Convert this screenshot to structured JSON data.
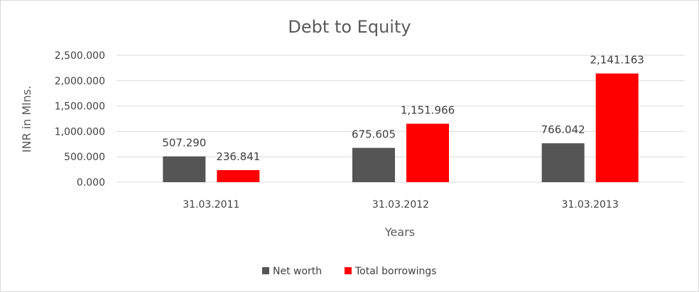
{
  "chart_data": {
    "type": "bar",
    "title": "Debt to Equity",
    "xlabel": "Years",
    "ylabel": "INR in Mlns.",
    "categories": [
      "31.03.2011",
      "31.03.2012",
      "31.03.2013"
    ],
    "series": [
      {
        "name": "Net worth",
        "color": "#555555",
        "values": [
          507.29,
          675.605,
          766.042
        ],
        "labels": [
          "507.290",
          "675.605",
          "766.042"
        ]
      },
      {
        "name": "Total borrowings",
        "color": "#ff0000",
        "values": [
          236.841,
          1151.966,
          2141.163
        ],
        "labels": [
          "236.841",
          "1,151.966",
          "2,141.163"
        ]
      }
    ],
    "ylim": [
      0,
      2500
    ],
    "yticks": [
      0,
      500,
      1000,
      1500,
      2000,
      2500
    ],
    "ytick_labels": [
      "0.000",
      "500.000",
      "1,000.000",
      "1,500.000",
      "2,000.000",
      "2,500.000"
    ],
    "grid": true,
    "legend_position": "bottom"
  }
}
